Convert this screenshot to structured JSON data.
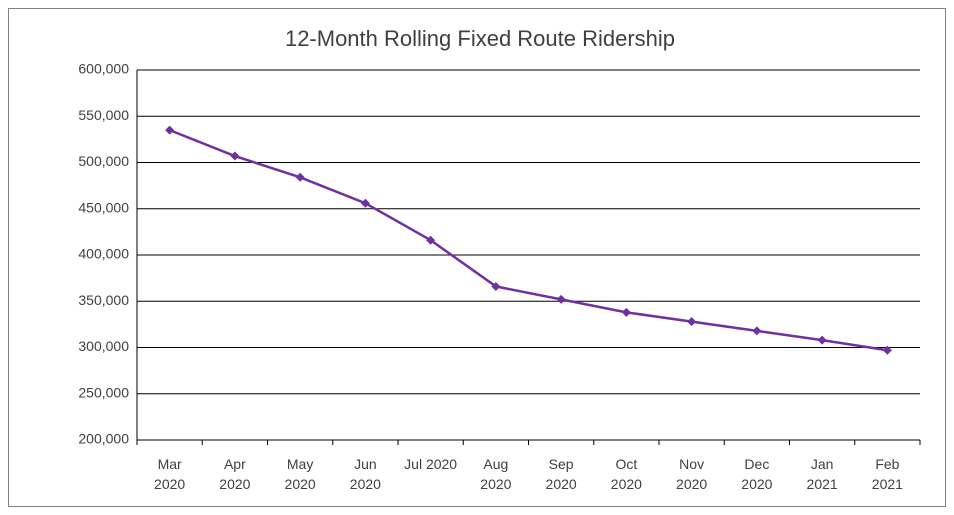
{
  "chart_data": {
    "type": "line",
    "title": "12-Month Rolling Fixed Route Ridership",
    "categories": [
      "Mar 2020",
      "Apr 2020",
      "May 2020",
      "Jun 2020",
      "Jul 2020",
      "Aug 2020",
      "Sep 2020",
      "Oct 2020",
      "Nov 2020",
      "Dec 2020",
      "Jan 2021",
      "Feb 2021"
    ],
    "series": [
      {
        "name": "Ridership",
        "color": "#7030a0",
        "values": [
          535000,
          507000,
          484000,
          456000,
          416000,
          366000,
          352000,
          338000,
          328000,
          318000,
          308000,
          297000
        ]
      }
    ],
    "ylim": [
      200000,
      600000
    ],
    "yticks": [
      {
        "value": 200000,
        "label": "200,000"
      },
      {
        "value": 250000,
        "label": "250,000"
      },
      {
        "value": 300000,
        "label": "300,000"
      },
      {
        "value": 350000,
        "label": "350,000"
      },
      {
        "value": 400000,
        "label": "400,000"
      },
      {
        "value": 450000,
        "label": "450,000"
      },
      {
        "value": 500000,
        "label": "500,000"
      },
      {
        "value": 550000,
        "label": "550,000"
      },
      {
        "value": 600000,
        "label": "600,000"
      }
    ],
    "grid": true
  }
}
